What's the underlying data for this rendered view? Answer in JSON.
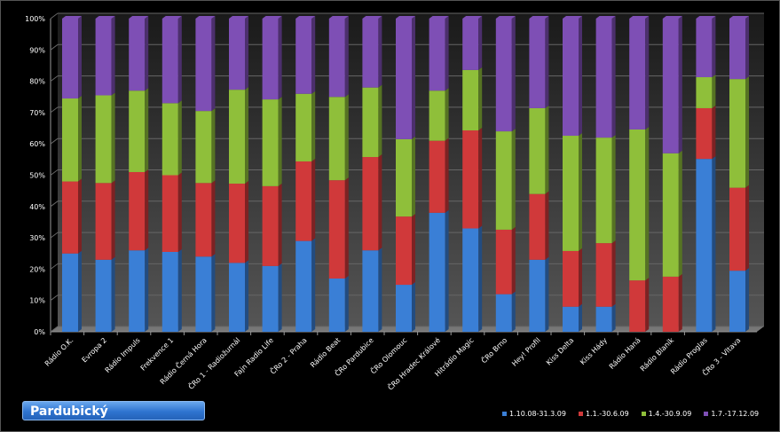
{
  "title": "Pardubický",
  "chart_data": {
    "type": "bar",
    "stacked": "percent",
    "three_d": true,
    "ylim": [
      0,
      100
    ],
    "yticks": [
      "0%",
      "10%",
      "20%",
      "30%",
      "40%",
      "50%",
      "60%",
      "70%",
      "80%",
      "90%",
      "100%"
    ],
    "categories": [
      "Rádio O.K.",
      "Evropa 2",
      "Rádio Impuls",
      "Frekvence 1",
      "Rádio Černá Hora",
      "ČRo 1 - Radiožurnál",
      "Fajn Radio Life",
      "ČRo 2 - Praha",
      "Rádio Beat",
      "ČRo Pardubice",
      "ČRo Olomouc",
      "ČRo Hradec Králové",
      "Hitrádio Magic",
      "ČRo Brno",
      "Hey! Profil",
      "Kiss Delta",
      "Kiss Hády",
      "Rádio Haná",
      "Rádio Blaník",
      "Rádio Proglas",
      "ČRo 3 - Vltava"
    ],
    "series": [
      {
        "name": "1.10.08-31.3.09",
        "color": "#3a7fd6",
        "values": [
          25,
          23,
          26,
          25.5,
          24,
          22,
          21,
          29,
          17,
          26,
          15,
          38,
          33,
          12,
          23,
          8,
          8,
          0,
          0,
          55.2,
          19.5
        ]
      },
      {
        "name": "1.1.-30.6.09",
        "color": "#d0393a",
        "values": [
          23,
          24.5,
          25,
          24.5,
          23.5,
          25.3,
          25.5,
          25.4,
          31.4,
          29.8,
          21.8,
          23,
          31.3,
          20.6,
          21,
          17.8,
          20.3,
          16.4,
          17.6,
          16.2,
          26.5
        ]
      },
      {
        "name": "1.4.-30.9.09",
        "color": "#8fbf3a",
        "values": [
          26.5,
          28,
          26,
          23,
          23,
          30,
          27.7,
          21.6,
          26.6,
          22.2,
          24.7,
          16,
          19.3,
          31.4,
          27.4,
          36.8,
          33.7,
          48.2,
          39.4,
          9.9,
          34.7
        ]
      },
      {
        "name": "1.7.-17.12.09",
        "color": "#7e4fb5",
        "values": [
          25.5,
          24.5,
          23,
          27,
          29.5,
          22.7,
          25.8,
          24,
          25,
          22,
          38.5,
          23,
          16.4,
          36,
          28.6,
          37.4,
          38,
          35.4,
          43,
          18.7,
          19.3
        ]
      }
    ],
    "legend_position": "bottom-right"
  }
}
